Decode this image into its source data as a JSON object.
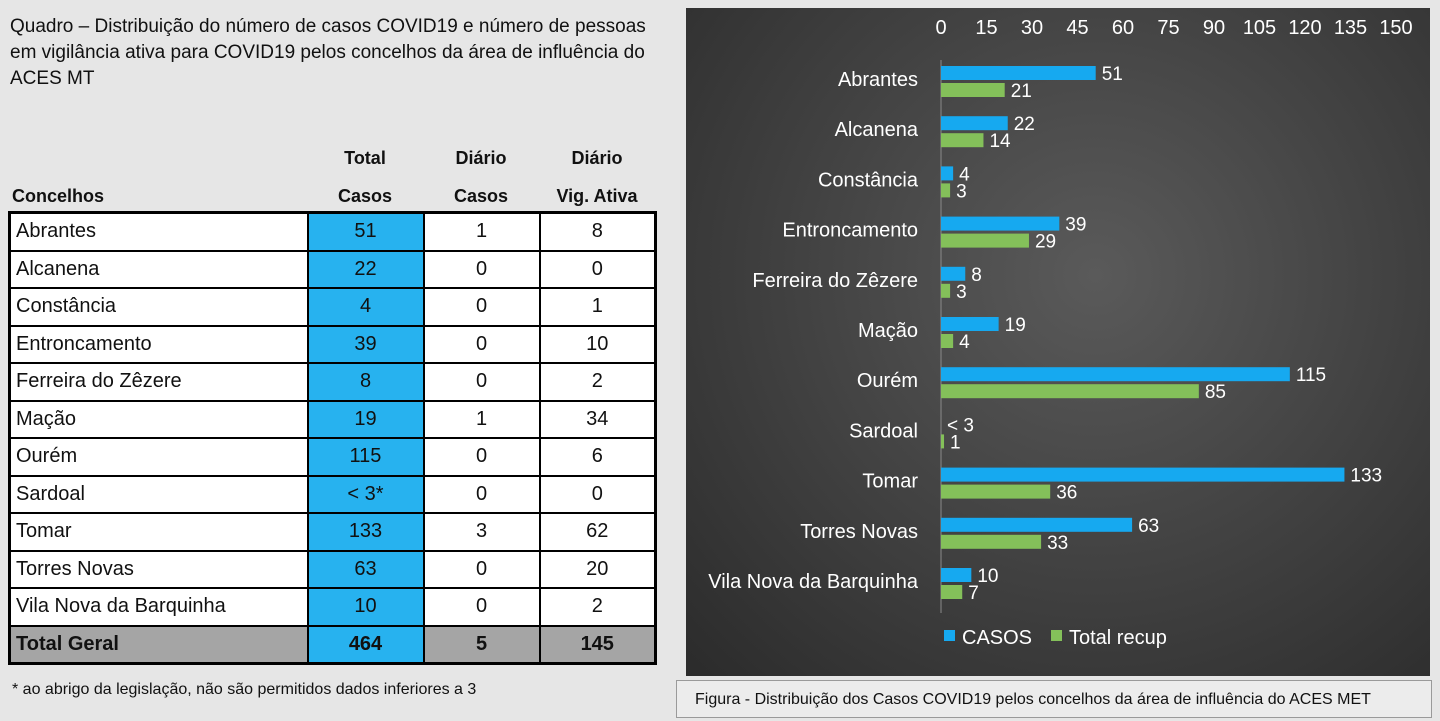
{
  "heading": "Quadro – Distribuição do número de casos COVID19 e número de pessoas em vigilância ativa para COVID19 pelos concelhos da área de influência do ACES MT",
  "table": {
    "headers": {
      "concelhos": "Concelhos",
      "total_casos_1": "Total",
      "total_casos_2": "Casos",
      "diario_casos_1": "Diário",
      "diario_casos_2": "Casos",
      "diario_vig_1": "Diário",
      "diario_vig_2": "Vig. Ativa"
    },
    "rows": [
      {
        "concelho": "Abrantes",
        "total_casos": "51",
        "diario_casos": "1",
        "diario_vig": "8"
      },
      {
        "concelho": "Alcanena",
        "total_casos": "22",
        "diario_casos": "0",
        "diario_vig": "0"
      },
      {
        "concelho": "Constância",
        "total_casos": "4",
        "diario_casos": "0",
        "diario_vig": "1"
      },
      {
        "concelho": "Entroncamento",
        "total_casos": "39",
        "diario_casos": "0",
        "diario_vig": "10"
      },
      {
        "concelho": "Ferreira do Zêzere",
        "total_casos": "8",
        "diario_casos": "0",
        "diario_vig": "2"
      },
      {
        "concelho": "Mação",
        "total_casos": "19",
        "diario_casos": "1",
        "diario_vig": "34"
      },
      {
        "concelho": "Ourém",
        "total_casos": "115",
        "diario_casos": "0",
        "diario_vig": "6"
      },
      {
        "concelho": "Sardoal",
        "total_casos": "< 3*",
        "diario_casos": "0",
        "diario_vig": "0"
      },
      {
        "concelho": "Tomar",
        "total_casos": "133",
        "diario_casos": "3",
        "diario_vig": "62"
      },
      {
        "concelho": "Torres Novas",
        "total_casos": "63",
        "diario_casos": "0",
        "diario_vig": "20"
      },
      {
        "concelho": "Vila Nova da Barquinha",
        "total_casos": "10",
        "diario_casos": "0",
        "diario_vig": "2"
      }
    ],
    "total": {
      "concelho": "Total Geral",
      "total_casos": "464",
      "diario_casos": "5",
      "diario_vig": "145"
    },
    "colors": {
      "casos_cell": "#27b2ef",
      "total_row": "#a5a5a5"
    }
  },
  "footnote": "* ao abrigo da legislação, não são permitidos dados inferiores a 3",
  "caption": "Figura -  Distribuição dos Casos COVID19 pelos concelhos da área de influência do ACES MET",
  "chart_data": {
    "type": "bar",
    "orientation": "horizontal",
    "categories": [
      "Abrantes",
      "Alcanena",
      "Constância",
      "Entroncamento",
      "Ferreira do Zêzere",
      "Mação",
      "Ourém",
      "Sardoal",
      "Tomar",
      "Torres Novas",
      "Vila Nova da Barquinha"
    ],
    "series": [
      {
        "name": "CASOS",
        "color": "#16a9f0",
        "values": [
          51,
          22,
          4,
          39,
          8,
          19,
          115,
          0,
          133,
          63,
          10
        ],
        "labels": [
          "51",
          "22",
          "4",
          "39",
          "8",
          "19",
          "115",
          "< 3",
          "133",
          "63",
          "10"
        ]
      },
      {
        "name": "Total recup",
        "color": "#84c05a",
        "values": [
          21,
          14,
          3,
          29,
          3,
          4,
          85,
          1,
          36,
          33,
          7
        ],
        "labels": [
          "21",
          "14",
          "3",
          "29",
          "3",
          "4",
          "85",
          "1",
          "36",
          "33",
          "7"
        ]
      }
    ],
    "xticks": [
      "0",
      "15",
      "30",
      "45",
      "60",
      "75",
      "90",
      "105",
      "120",
      "135",
      "150"
    ],
    "xlim": [
      0,
      150
    ],
    "x_axis_position": "top",
    "grid": false,
    "legend": "bottom",
    "background": "#3d3d3d"
  }
}
